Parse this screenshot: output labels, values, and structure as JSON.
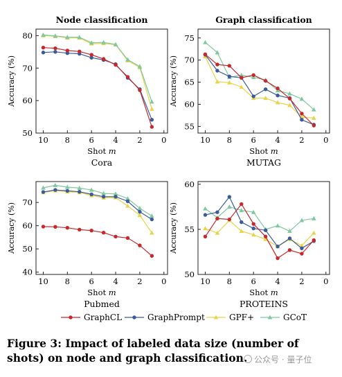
{
  "figure": {
    "caption_label": "Figure 3:",
    "caption_text": "Impact of labeled data size (number of shots) on node and graph classification.",
    "watermark_text": "公众号 · 量子位"
  },
  "legend": {
    "placement": "bottom-center",
    "entries": [
      {
        "name": "GraphCL",
        "color": "#c8282a",
        "marker": "circle"
      },
      {
        "name": "GraphPrompt",
        "color": "#3a5a9a",
        "marker": "circle"
      },
      {
        "name": "GPF+",
        "color": "#e8d44a",
        "marker": "triangle"
      },
      {
        "name": "GCoT",
        "color": "#7fc8a0",
        "marker": "triangle"
      }
    ]
  },
  "chart_data": [
    {
      "type": "line",
      "title": "Node classification",
      "subtitle": "Cora",
      "xlabel": "Shot m",
      "ylabel": "Accuracy (%)",
      "x": [
        10,
        9,
        8,
        7,
        6,
        5,
        4,
        3,
        2,
        1
      ],
      "xlim": [
        10.6,
        -0.3
      ],
      "ylim": [
        50,
        82
      ],
      "xticks": [
        10,
        8,
        6,
        4,
        2,
        0
      ],
      "yticks": [
        50,
        60,
        70,
        80
      ],
      "grid": false,
      "series": [
        {
          "name": "GraphCL",
          "values": [
            76.3,
            76.1,
            75.4,
            75.1,
            74.1,
            72.8,
            71.0,
            67.3,
            63.2,
            51.9
          ]
        },
        {
          "name": "GraphPrompt",
          "values": [
            74.8,
            75.0,
            74.6,
            74.4,
            73.2,
            72.5,
            71.2,
            67.0,
            63.5,
            54.1
          ]
        },
        {
          "name": "GPF+",
          "values": [
            80.0,
            79.8,
            79.3,
            79.3,
            77.5,
            77.6,
            77.2,
            72.3,
            70.2,
            57.4
          ]
        },
        {
          "name": "GCoT",
          "values": [
            80.2,
            79.9,
            79.5,
            79.5,
            77.8,
            77.9,
            77.3,
            72.6,
            70.5,
            59.6
          ]
        }
      ]
    },
    {
      "type": "line",
      "title": "Graph classification",
      "subtitle": "MUTAG",
      "xlabel": "Shot m",
      "ylabel": "Accuracy (%)",
      "x": [
        10,
        9,
        8,
        7,
        6,
        5,
        4,
        3,
        2,
        1
      ],
      "xlim": [
        10.6,
        -0.3
      ],
      "ylim": [
        53.5,
        77
      ],
      "xticks": [
        10,
        8,
        6,
        4,
        2,
        0
      ],
      "yticks": [
        55,
        60,
        65,
        70,
        75
      ],
      "grid": false,
      "series": [
        {
          "name": "GraphCL",
          "values": [
            71.3,
            69.0,
            68.7,
            66.0,
            66.6,
            65.3,
            63.6,
            61.3,
            57.9,
            55.2
          ]
        },
        {
          "name": "GraphPrompt",
          "values": [
            71.2,
            67.6,
            66.3,
            66.0,
            61.8,
            63.4,
            62.0,
            61.4,
            56.5,
            55.4
          ]
        },
        {
          "name": "GPF+",
          "values": [
            70.8,
            65.1,
            64.9,
            63.9,
            61.4,
            61.4,
            60.4,
            59.8,
            57.1,
            56.9
          ]
        },
        {
          "name": "GCoT",
          "values": [
            74.0,
            71.7,
            66.1,
            66.6,
            66.1,
            65.5,
            63.1,
            62.4,
            61.2,
            58.8
          ]
        }
      ]
    },
    {
      "type": "line",
      "title": "",
      "subtitle": "Pubmed",
      "xlabel": "Shot m",
      "ylabel": "Accuracy (%)",
      "x": [
        10,
        9,
        8,
        7,
        6,
        5,
        4,
        3,
        2,
        1
      ],
      "xlim": [
        10.6,
        -0.3
      ],
      "ylim": [
        39,
        79
      ],
      "xticks": [
        10,
        8,
        6,
        4,
        2,
        0
      ],
      "yticks": [
        40,
        50,
        60,
        70
      ],
      "grid": false,
      "series": [
        {
          "name": "GraphCL",
          "values": [
            59.6,
            59.5,
            59.1,
            58.3,
            57.9,
            57.0,
            55.3,
            54.7,
            51.5,
            47.0
          ]
        },
        {
          "name": "GraphPrompt",
          "values": [
            74.5,
            75.4,
            75.0,
            74.6,
            73.5,
            72.5,
            72.5,
            70.5,
            66.0,
            62.7
          ]
        },
        {
          "name": "GPF+",
          "values": [
            74.3,
            75.1,
            74.6,
            74.3,
            73.0,
            72.0,
            72.1,
            68.5,
            64.5,
            56.9
          ]
        },
        {
          "name": "GCoT",
          "values": [
            76.3,
            77.4,
            76.6,
            76.2,
            75.4,
            73.9,
            73.7,
            71.7,
            67.5,
            64.2
          ]
        }
      ]
    },
    {
      "type": "line",
      "title": "",
      "subtitle": "PROTEINS",
      "xlabel": "Shot m",
      "ylabel": "Accuracy (%)",
      "x": [
        10,
        9,
        8,
        7,
        6,
        5,
        4,
        3,
        2,
        1
      ],
      "xlim": [
        10.6,
        -0.3
      ],
      "ylim": [
        50,
        60.3
      ],
      "xticks": [
        10,
        8,
        6,
        4,
        2,
        0
      ],
      "yticks": [
        50,
        55,
        60
      ],
      "grid": false,
      "series": [
        {
          "name": "GraphCL",
          "values": [
            54.2,
            56.2,
            56.1,
            57.8,
            55.6,
            54.2,
            51.8,
            52.7,
            52.3,
            53.8
          ]
        },
        {
          "name": "GraphPrompt",
          "values": [
            56.6,
            56.9,
            58.6,
            55.8,
            55.1,
            54.9,
            53.1,
            54.0,
            52.9,
            53.7
          ]
        },
        {
          "name": "GPF+",
          "values": [
            55.1,
            54.6,
            56.0,
            54.8,
            54.4,
            53.9,
            53.1,
            53.9,
            53.2,
            54.6
          ]
        },
        {
          "name": "GCoT",
          "values": [
            57.3,
            56.3,
            57.5,
            57.1,
            56.9,
            55.0,
            55.4,
            54.8,
            56.0,
            56.2
          ]
        }
      ]
    }
  ]
}
